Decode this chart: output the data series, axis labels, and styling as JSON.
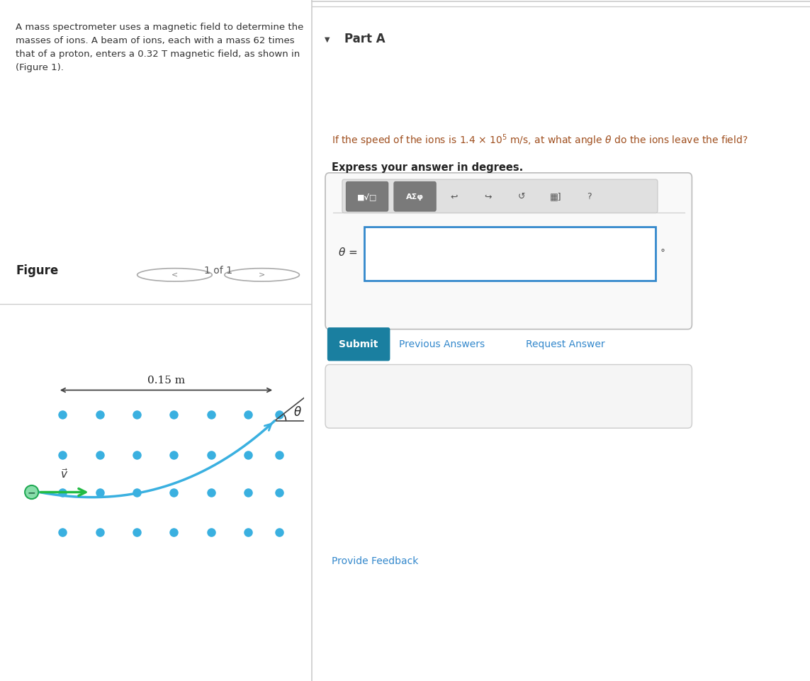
{
  "bg_color": "#ffffff",
  "left_panel_bg": "#ddeef5",
  "divider_color": "#cccccc",
  "part_a_label": "Part A",
  "question_text_color": "#a05020",
  "bold_text": "Express your answer in degrees.",
  "submit_bg": "#1a7fa0",
  "submit_label": "Submit",
  "prev_answers_label": "Previous Answers",
  "request_answer_label": "Request Answer",
  "provide_feedback_label": "Provide Feedback",
  "figure_label": "Figure",
  "figure_nav": "1 of 1",
  "figure_distance": "0.15 m",
  "dot_color": "#3ab0e0",
  "arc_color": "#3ab0e0",
  "velocity_arrow_color": "#22bb44",
  "ion_circle_color": "#88ddaa",
  "ion_border_color": "#22aa55"
}
